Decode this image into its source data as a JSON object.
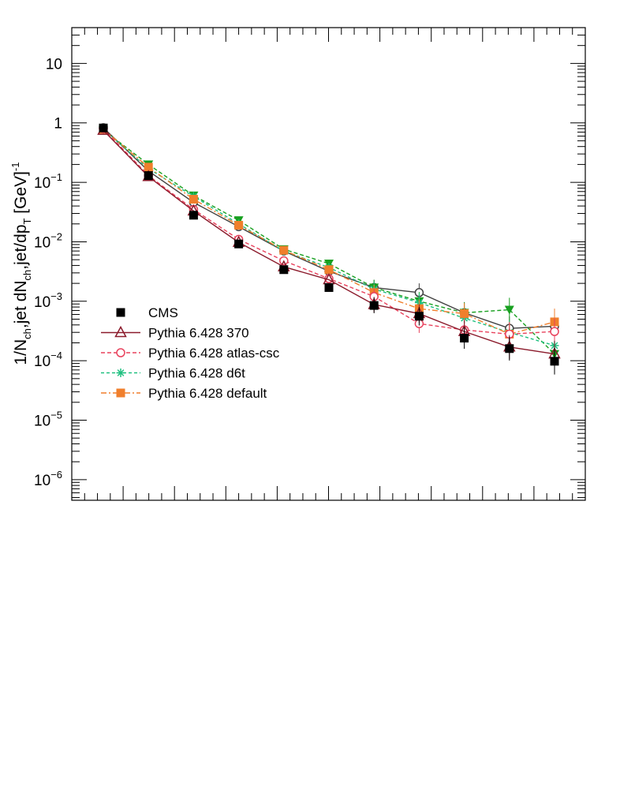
{
  "chart_data": {
    "type": "line",
    "ylabel": "1/N",
    "ylabel_parts": [
      "1/N",
      "ch",
      ",jet dN",
      "ch",
      ",jet/dp",
      "T",
      " [GeV]",
      "-1"
    ],
    "yscale": "log",
    "ylim": [
      4.5e-07,
      40
    ],
    "y_ticks": [
      {
        "value": 10,
        "label": "10",
        "exp": ""
      },
      {
        "value": 1,
        "label": "1",
        "exp": ""
      },
      {
        "value": 0.1,
        "label": "10",
        "exp": "−1"
      },
      {
        "value": 0.01,
        "label": "10",
        "exp": "−2"
      },
      {
        "value": 0.001,
        "label": "10",
        "exp": "−3"
      },
      {
        "value": 0.0001,
        "label": "10",
        "exp": "−4"
      },
      {
        "value": 1e-05,
        "label": "10",
        "exp": "−5"
      },
      {
        "value": 1e-06,
        "label": "10",
        "exp": "−6"
      }
    ],
    "grid": false,
    "legend_position": "middle-left",
    "x": [
      1,
      2,
      3,
      4,
      5,
      6,
      7,
      8,
      9,
      10,
      11
    ],
    "series": [
      {
        "name": "CMS",
        "marker": "filled-square",
        "color": "#000000",
        "values": [
          0.82,
          0.13,
          0.028,
          0.0092,
          0.0034,
          0.0017,
          0.00085,
          0.00056,
          0.00024,
          0.00016,
          9.8e-05
        ]
      },
      {
        "name": "Pythia 6.428 370",
        "marker": "open-triangle",
        "color": "#8b1a2b",
        "values": [
          0.75,
          0.125,
          0.033,
          0.0098,
          0.0038,
          0.0023,
          0.00088,
          0.00062,
          0.00031,
          0.00017,
          0.00013
        ]
      },
      {
        "name": "Pythia 6.428 atlas-csc",
        "marker": "open-circle",
        "color": "#e8415c",
        "values": [
          0.8,
          0.13,
          0.035,
          0.011,
          0.0048,
          0.0024,
          0.0012,
          0.00042,
          0.00033,
          0.00028,
          0.00031
        ]
      },
      {
        "name": "Pythia 6.428 d6t",
        "marker": "star",
        "color": "#20c080",
        "values": [
          0.77,
          0.17,
          0.058,
          0.02,
          0.007,
          0.0037,
          0.0016,
          0.00095,
          0.00052,
          0.0003,
          0.00018
        ]
      },
      {
        "name": "Pythia 6.428 default",
        "marker": "filled-square",
        "color": "#f07f2c",
        "values": [
          0.78,
          0.18,
          0.052,
          0.019,
          0.0072,
          0.0034,
          0.0014,
          0.00075,
          0.00062,
          0.00028,
          0.00045
        ]
      },
      {
        "name": "",
        "marker": "triangle-down",
        "color": "#18a020",
        "values": [
          0.76,
          0.2,
          0.06,
          0.023,
          0.0075,
          0.0043,
          0.0017,
          0.001,
          0.00064,
          0.00072,
          0.00013
        ]
      },
      {
        "name": "",
        "marker": "open-circle",
        "color": "#404040",
        "values": [
          0.83,
          0.155,
          0.046,
          0.018,
          0.007,
          0.0032,
          0.0017,
          0.0014,
          0.00064,
          0.00035,
          0.00038
        ]
      }
    ]
  }
}
